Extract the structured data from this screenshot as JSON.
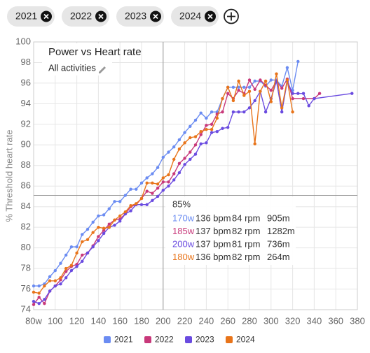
{
  "filters": [
    "2021",
    "2022",
    "2023",
    "2024"
  ],
  "chart_data": {
    "type": "line",
    "title": "Power vs Heart rate",
    "subtitle": "All activities",
    "y_label": "% Threshold heart rate",
    "xlim": [
      80,
      380
    ],
    "xticks": [
      {
        "value": 80,
        "label": "80w"
      },
      100,
      120,
      140,
      160,
      180,
      200,
      220,
      240,
      260,
      280,
      300,
      320,
      340,
      360,
      380
    ],
    "ylim": [
      74,
      100
    ],
    "yticks": [
      74,
      76,
      78,
      80,
      82,
      84,
      86,
      88,
      90,
      92,
      94,
      96,
      98,
      100
    ],
    "grid": true,
    "legend": "bottom",
    "crosshair": {
      "x": 200,
      "y": 85.1
    },
    "tooltip": {
      "title": "85%",
      "rows": [
        {
          "power": "170w",
          "hr": "136 bpm",
          "cadence": "84 rpm",
          "duration": "905m"
        },
        {
          "power": "185w",
          "hr": "137 bpm",
          "cadence": "82 rpm",
          "duration": "1282m"
        },
        {
          "power": "200w",
          "hr": "137 bpm",
          "cadence": "81 rpm",
          "duration": "736m"
        },
        {
          "power": "180w",
          "hr": "136 bpm",
          "cadence": "82 rpm",
          "duration": "264m"
        }
      ]
    },
    "series": [
      {
        "name": "2021",
        "color": "#6b8cf2",
        "x": [
          80,
          85,
          90,
          95,
          100,
          105,
          110,
          115,
          120,
          125,
          130,
          135,
          140,
          145,
          150,
          155,
          160,
          165,
          170,
          175,
          180,
          185,
          190,
          195,
          200,
          205,
          210,
          215,
          220,
          225,
          230,
          235,
          240,
          245,
          250,
          255,
          260,
          265,
          270,
          275,
          280,
          285,
          290,
          295,
          300,
          305,
          310,
          315,
          320,
          325
        ],
        "values": [
          76.3,
          76.3,
          76.5,
          77.2,
          77.8,
          78.5,
          79.3,
          80.1,
          80.1,
          81.3,
          81.8,
          82.5,
          83.1,
          83.2,
          83.8,
          84.5,
          84.5,
          85.1,
          85.7,
          85.7,
          86.3,
          86.8,
          87.2,
          87.8,
          88.8,
          89.3,
          89.8,
          90.5,
          91.2,
          91.8,
          92.4,
          93.1,
          92.6,
          93.2,
          93.2,
          94.5,
          95.6,
          95.6,
          95.6,
          95.6,
          95.6,
          96.2,
          96.2,
          95.7,
          96.3,
          96.3,
          95.7,
          97.5,
          95.3,
          98.1
        ]
      },
      {
        "name": "2022",
        "color": "#c8387a",
        "x": [
          80,
          85,
          90,
          95,
          100,
          105,
          110,
          115,
          120,
          125,
          130,
          135,
          140,
          145,
          150,
          155,
          160,
          165,
          170,
          175,
          180,
          185,
          190,
          195,
          200,
          205,
          210,
          215,
          220,
          225,
          230,
          235,
          240,
          245,
          250,
          255,
          260,
          265,
          270,
          275,
          280,
          285,
          290,
          295,
          300,
          305,
          310,
          315,
          320,
          330,
          340,
          345
        ],
        "values": [
          74.5,
          75.2,
          74.6,
          75.8,
          76.3,
          76.9,
          77.7,
          78.2,
          78.4,
          79.3,
          79.5,
          80.2,
          81.1,
          81.7,
          82.3,
          82.7,
          82.8,
          83.3,
          84.0,
          84.2,
          84.8,
          85.5,
          85.3,
          85.8,
          86.4,
          86.4,
          87.2,
          88.2,
          88.7,
          89.3,
          90.0,
          91.0,
          91.9,
          92.0,
          93.0,
          93.2,
          95.0,
          94.5,
          95.3,
          95.0,
          96.3,
          95.4,
          96.3,
          95.8,
          95.3,
          96.2,
          95.5,
          96.4,
          94.5,
          94.5,
          94.5,
          95.0
        ]
      },
      {
        "name": "2023",
        "color": "#6a4be0",
        "x": [
          80,
          85,
          90,
          95,
          100,
          105,
          110,
          115,
          120,
          125,
          130,
          135,
          140,
          145,
          150,
          155,
          160,
          165,
          170,
          175,
          180,
          185,
          190,
          195,
          200,
          205,
          210,
          215,
          220,
          225,
          230,
          235,
          240,
          245,
          250,
          255,
          260,
          265,
          270,
          275,
          280,
          285,
          290,
          295,
          300,
          305,
          310,
          315,
          320,
          325,
          330,
          335,
          340,
          375
        ],
        "values": [
          74.8,
          74.6,
          75.0,
          75.8,
          76.3,
          76.5,
          77.1,
          77.8,
          78.2,
          78.7,
          79.5,
          80.1,
          80.7,
          81.4,
          82.0,
          82.2,
          82.6,
          83.3,
          83.6,
          84.2,
          84.2,
          84.2,
          84.6,
          85.0,
          85.6,
          86.0,
          86.6,
          87.3,
          88.1,
          88.6,
          89.1,
          90.1,
          90.2,
          91.2,
          91.3,
          91.6,
          91.7,
          93.2,
          93.2,
          93.2,
          93.6,
          94.3,
          95.2,
          93.2,
          94.5,
          96.2,
          93.2,
          96.2,
          95.0,
          95.0,
          95.0,
          93.8,
          94.5,
          95.0
        ]
      },
      {
        "name": "2024",
        "color": "#e8741a",
        "x": [
          80,
          85,
          90,
          95,
          100,
          105,
          110,
          115,
          120,
          125,
          130,
          135,
          140,
          145,
          150,
          155,
          160,
          165,
          170,
          175,
          180,
          185,
          190,
          195,
          200,
          205,
          210,
          215,
          220,
          225,
          230,
          235,
          240,
          245,
          250,
          255,
          260,
          265,
          270,
          275,
          280,
          285,
          290,
          295,
          300,
          305,
          310,
          315,
          320
        ],
        "values": [
          75.7,
          75.6,
          76.3,
          76.8,
          76.8,
          77.1,
          78.0,
          78.3,
          79.5,
          80.6,
          80.8,
          81.5,
          82.0,
          81.9,
          82.0,
          82.7,
          83.1,
          83.5,
          84.1,
          84.3,
          84.8,
          86.3,
          86.3,
          86.2,
          86.8,
          87.1,
          88.6,
          89.6,
          90.2,
          90.7,
          90.8,
          91.3,
          91.5,
          91.5,
          92.6,
          94.5,
          95.6,
          94.3,
          96.2,
          94.8,
          95.2,
          90.1,
          95.2,
          96.2,
          94.2,
          96.9,
          93.6,
          96.3,
          93.2
        ]
      }
    ]
  }
}
